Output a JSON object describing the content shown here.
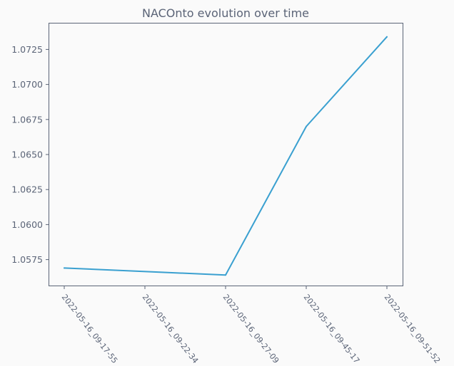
{
  "chart_data": {
    "type": "line",
    "title": "NACOnto evolution over time",
    "xlabel": "",
    "ylabel": "",
    "categories": [
      "2022-05-16_09-17-55",
      "2022-05-16_09-22-34",
      "2022-05-16_09-27-09",
      "2022-05-16_09-45-17",
      "2022-05-16_09-51-52"
    ],
    "points": [
      {
        "x": "2022-05-16_09-17-55",
        "y": 1.0569
      },
      {
        "x": "2022-05-16_09-27-09",
        "y": 1.0564
      },
      {
        "x": "2022-05-16_09-45-17",
        "y": 1.067
      },
      {
        "x": "2022-05-16_09-51-52",
        "y": 1.0734
      }
    ],
    "yticks": [
      "1.0575",
      "1.0600",
      "1.0625",
      "1.0650",
      "1.0675",
      "1.0700",
      "1.0725"
    ],
    "ylim": [
      1.05565,
      1.07435
    ],
    "grid": false,
    "colors": {
      "line": "#3aa0d0",
      "axis": "#5b6477",
      "text": "#5b6477",
      "background": "#fafafa"
    }
  }
}
